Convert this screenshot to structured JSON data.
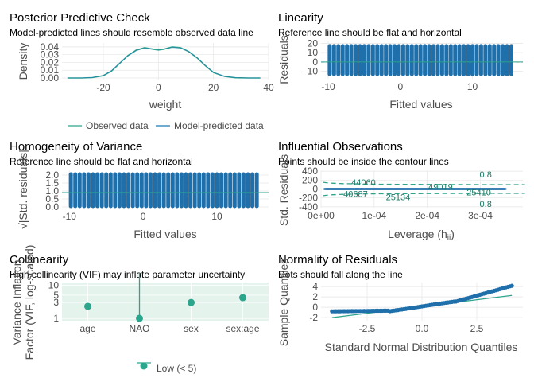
{
  "colors": {
    "observed": "#2ca58d",
    "predicted": "#1f78b4",
    "points": "#1f6fab",
    "refline": "#2ca58d",
    "zero": "#000000",
    "ci_fill": "#cfe9df"
  },
  "chart_data": [
    {
      "id": "ppc",
      "type": "line",
      "title": "Posterior Predictive Check",
      "subtitle": "Model-predicted lines should resemble observed data line",
      "xlabel": "weight",
      "ylabel": "Density",
      "xlim": [
        -35,
        40
      ],
      "ylim": [
        0,
        0.045
      ],
      "xticks": [
        -20,
        0,
        20,
        40
      ],
      "yticks": [
        0.0,
        0.01,
        0.02,
        0.03,
        0.04
      ],
      "ytick_labels": [
        "0.00",
        "0.01",
        "0.02",
        "0.03",
        "0.04"
      ],
      "legend": [
        "Observed data",
        "Model-predicted data"
      ],
      "x": [
        -33,
        -28,
        -24,
        -20,
        -17,
        -14,
        -11,
        -8,
        -5,
        -2,
        0,
        2,
        5,
        8,
        11,
        14,
        17,
        20,
        24,
        28,
        33,
        37
      ],
      "series": [
        {
          "name": "Observed data",
          "values": [
            0,
            0,
            0.0005,
            0.003,
            0.009,
            0.019,
            0.029,
            0.036,
            0.039,
            0.037,
            0.036,
            0.037,
            0.04,
            0.039,
            0.034,
            0.026,
            0.016,
            0.007,
            0.002,
            0.0003,
            0,
            0
          ]
        },
        {
          "name": "Model-predicted data",
          "values": [
            0,
            0,
            0.0006,
            0.0032,
            0.0095,
            0.0195,
            0.0285,
            0.0352,
            0.0382,
            0.0375,
            0.0368,
            0.0372,
            0.0392,
            0.0386,
            0.0338,
            0.0262,
            0.0165,
            0.0074,
            0.0021,
            0.0004,
            0,
            0
          ]
        }
      ]
    },
    {
      "id": "linearity",
      "type": "scatter",
      "title": "Linearity",
      "subtitle": "Reference line should be flat and horizontal",
      "xlabel": "Fitted values",
      "ylabel": "Residuals",
      "xlim": [
        -11,
        17
      ],
      "ylim": [
        -18,
        22
      ],
      "xticks": [
        -10,
        0,
        10
      ],
      "yticks": [
        -10,
        0,
        10,
        20
      ],
      "fitted": [
        -9.8,
        -9.2,
        -8.6,
        -8.0,
        -7.4,
        -6.8,
        -6.2,
        -5.6,
        -5.0,
        -4.4,
        -3.8,
        -3.2,
        -2.6,
        -2.0,
        -1.4,
        -0.8,
        -0.2,
        0.4,
        1.0,
        1.6,
        2.2,
        2.8,
        3.4,
        4.0,
        4.6,
        5.2,
        5.8,
        6.4,
        7.0,
        7.6,
        8.2,
        8.8,
        9.4,
        10.0,
        10.6,
        11.2,
        11.8,
        12.4,
        13.0,
        13.6,
        14.2,
        14.8,
        15.4
      ],
      "resid_low": -13,
      "resid_high": 17,
      "reference": 0
    },
    {
      "id": "homogeneity",
      "type": "scatter",
      "title": "Homogeneity of Variance",
      "subtitle": "Reference line should be flat and horizontal",
      "xlabel": "Fitted values",
      "ylabel": "√|Std. residuals|",
      "xlim": [
        -11,
        17
      ],
      "ylim": [
        -0.1,
        2.3
      ],
      "xticks": [
        -10,
        0,
        10
      ],
      "yticks": [
        0.0,
        0.5,
        1.0,
        1.5,
        2.0
      ],
      "ytick_labels": [
        "0.0",
        "0.5",
        "1.0",
        "1.5",
        "2.0"
      ],
      "low": 0.05,
      "high": 2.05,
      "reference": 0.9
    },
    {
      "id": "influential",
      "type": "scatter",
      "title": "Influential Observations",
      "subtitle": "Points should be inside the contour lines",
      "xlabel": "Leverage (h",
      "xlabel_sub": "ii",
      "xlabel_end": ")",
      "ylabel": "Std. Residuals",
      "xlim": [
        0,
        0.00038
      ],
      "ylim": [
        -420,
        420
      ],
      "xticks": [
        0,
        0.0001,
        0.0002,
        0.0003
      ],
      "xtick_labels": [
        "0e+00",
        "1e-04",
        "2e-04",
        "3e-04"
      ],
      "yticks": [
        -400,
        -200,
        0,
        200,
        400
      ],
      "ytick_labels": [
        "-400",
        "-200",
        "0",
        "200",
        "400"
      ],
      "contour_label": "0.8",
      "labels": [
        {
          "text": "44060",
          "x": 8e-05,
          "y": 150
        },
        {
          "text": "40687",
          "x": 6.5e-05,
          "y": -110
        },
        {
          "text": "25134",
          "x": 0.000145,
          "y": -180
        },
        {
          "text": "49019",
          "x": 0.000225,
          "y": 55
        },
        {
          "text": "25410",
          "x": 0.000297,
          "y": -75
        }
      ]
    },
    {
      "id": "collinearity",
      "type": "scatter",
      "title": "Collinearity",
      "subtitle": "High collinearity (VIF) may inflate parameter uncertainty",
      "xlabel": "",
      "ylabel": "Variance Inflation Factor (VIF, log-scaled)",
      "ylabel_lines": [
        "Variance Inflation",
        "Factor (VIF, log-scaled)"
      ],
      "categories": [
        "age",
        "NAO",
        "sex",
        "sex:age"
      ],
      "values": [
        2.3,
        1.0,
        3.0,
        4.2
      ],
      "ci_high": [
        2.45,
        150,
        3.2,
        4.5
      ],
      "yticks": [
        1,
        3,
        5,
        10
      ],
      "ylim": [
        0.85,
        12
      ],
      "legend": [
        "Low (< 5)"
      ]
    },
    {
      "id": "normality",
      "type": "scatter",
      "title": "Normality of Residuals",
      "subtitle": "Dots should fall along the line",
      "xlabel": "Standard Normal Distribution Quantiles",
      "ylabel": "Sample Quantiles",
      "xlim": [
        -4.6,
        4.6
      ],
      "ylim": [
        -2.6,
        4.8
      ],
      "xticks": [
        -2.5,
        0.0,
        2.5
      ],
      "xtick_labels": [
        "-2.5",
        "0.0",
        "2.5"
      ],
      "yticks": [
        -2,
        0,
        2,
        4
      ],
      "line_from": [
        -4.1,
        -2.0
      ],
      "line_to": [
        4.1,
        2.3
      ]
    }
  ]
}
